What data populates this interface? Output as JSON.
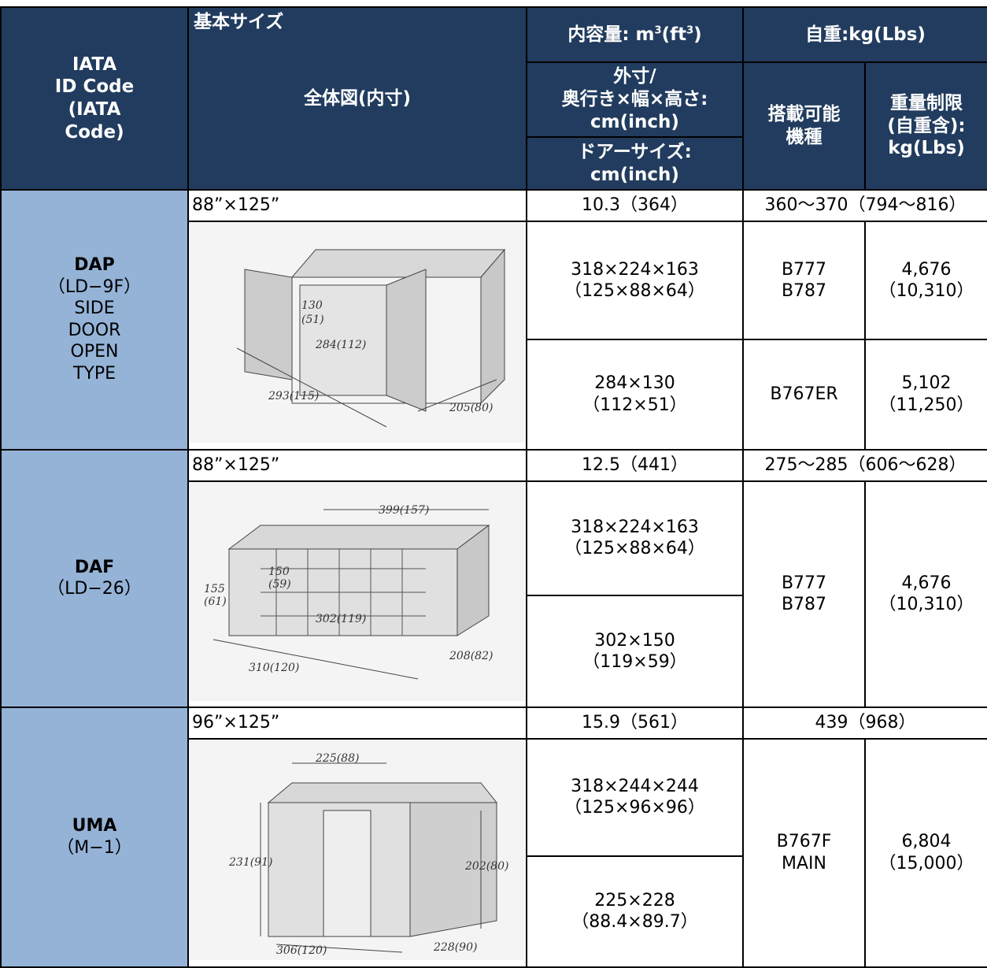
{
  "header": {
    "code": [
      "IATA",
      "ID Code",
      "(IATA",
      "Code)"
    ],
    "basic_size": "基本サイズ",
    "overall": "全体図(内寸)",
    "volume": {
      "label": "内容量: m",
      "sup1": "3",
      "mid": "(ft",
      "sup2": "3",
      "end": ")"
    },
    "outer": [
      "外寸/",
      "奥行き×幅×高さ:",
      "cm(inch)"
    ],
    "door": [
      "ドアーサイズ:",
      "cm(inch)"
    ],
    "tare": "自重:kg(Lbs)",
    "aircraft": [
      "搭載可能",
      "機種"
    ],
    "limit": [
      "重量制限",
      "(自重含):",
      "kg(Lbs)"
    ]
  },
  "rows": [
    {
      "code": "DAP",
      "sub": [
        "（LD−9F）",
        "SIDE",
        "DOOR",
        "OPEN",
        "TYPE"
      ],
      "size": "88”×125”",
      "volume": "10.3（364）",
      "tare": "360～370（794～816）",
      "outer": [
        "318×224×163",
        "（125×88×64）"
      ],
      "door": [
        "284×130",
        "（112×51）"
      ],
      "aircraft": [
        {
          "models": [
            "B777",
            "B787"
          ],
          "limit": [
            "4,676",
            "（10,310）"
          ]
        },
        {
          "models": [
            "B767ER"
          ],
          "limit": [
            "5,102",
            "（11,250）"
          ]
        }
      ],
      "diagram": [
        "130",
        "(51)",
        "284(112)",
        "293(115)",
        "205(80)"
      ]
    },
    {
      "code": "DAF",
      "sub": [
        "（LD−26）"
      ],
      "size": "88”×125”",
      "volume": "12.5（441）",
      "tare": "275～285（606～628）",
      "outer": [
        "318×224×163",
        "（125×88×64）"
      ],
      "door": [
        "302×150",
        "（119×59）"
      ],
      "aircraft": [
        {
          "models": [
            "B777",
            "B787"
          ],
          "limit": [
            "4,676",
            "（10,310）"
          ]
        }
      ],
      "diagram": [
        "399(157)",
        "150",
        "(59)",
        "155",
        "(61)",
        "302(119)",
        "310(120)",
        "208(82)"
      ]
    },
    {
      "code": "UMA",
      "sub": [
        "（M−1）"
      ],
      "size": "96”×125”",
      "volume": "15.9（561）",
      "tare": "439（968）",
      "outer": [
        "318×244×244",
        "（125×96×96）"
      ],
      "door": [
        "225×228",
        "（88.4×89.7）"
      ],
      "aircraft": [
        {
          "models": [
            "B767F",
            "MAIN"
          ],
          "limit": [
            "6,804",
            "（15,000）"
          ]
        }
      ],
      "diagram": [
        "225(88)",
        "231(91)",
        "202(80)",
        "306(120)",
        "228(90)"
      ]
    }
  ]
}
